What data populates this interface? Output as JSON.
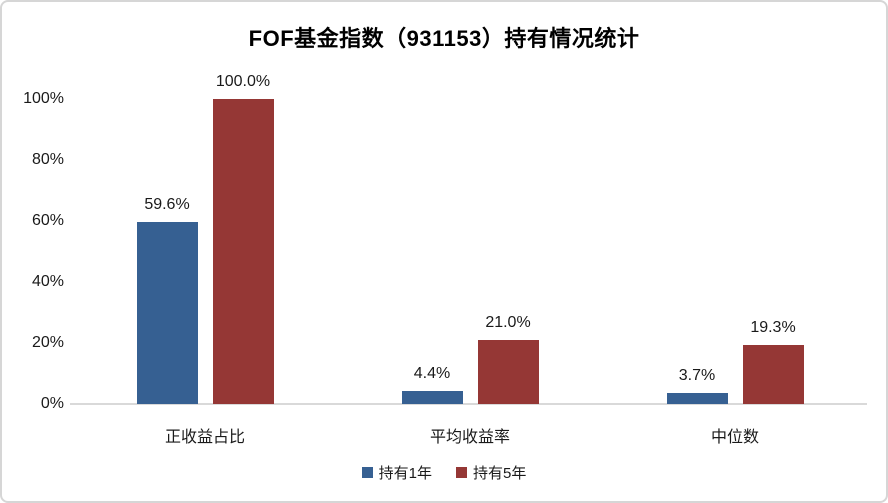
{
  "chart_data": {
    "type": "bar",
    "title": "FOF基金指数（931153）持有情况统计",
    "categories": [
      "正收益占比",
      "平均收益率",
      "中位数"
    ],
    "series": [
      {
        "name": "持有1年",
        "color": "#366092",
        "values": [
          59.6,
          4.4,
          3.7
        ],
        "labels": [
          "59.6%",
          "4.4%",
          "3.7%"
        ]
      },
      {
        "name": "持有5年",
        "color": "#953735",
        "values": [
          100.0,
          21.0,
          19.3
        ],
        "labels": [
          "100.0%",
          "21.0%",
          "19.3%"
        ]
      }
    ],
    "y_axis": {
      "ticks": [
        "0%",
        "20%",
        "40%",
        "60%",
        "80%",
        "100%"
      ],
      "tick_values": [
        0,
        20,
        40,
        60,
        80,
        100
      ],
      "min": 0,
      "max": 100
    },
    "legend_position": "bottom",
    "grid": false,
    "axis_line_color": "#d9d9d9"
  }
}
